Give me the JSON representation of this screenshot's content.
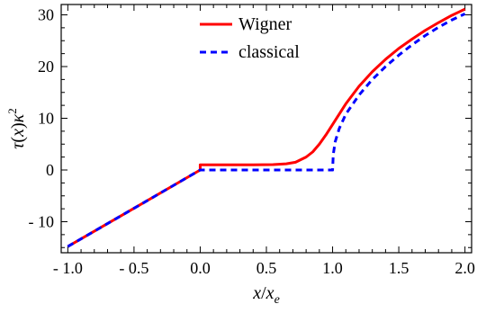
{
  "chart_data": {
    "type": "line",
    "title": "",
    "xlabel": "x/x_e",
    "ylabel": "τ(x)κ^2",
    "xlim": [
      -1.05,
      2.05
    ],
    "ylim": [
      -16,
      32
    ],
    "xticks": [
      -1.0,
      -0.5,
      0.0,
      0.5,
      1.0,
      1.5,
      2.0
    ],
    "xtick_labels": [
      "- 1.0",
      "- 0.5",
      "0.0",
      "0.5",
      "1.0",
      "1.5",
      "2.0"
    ],
    "yticks": [
      -10,
      0,
      10,
      20,
      30
    ],
    "ytick_labels": [
      "- 10",
      "0",
      "10",
      "20",
      "30"
    ],
    "grid": false,
    "legend_position": "top-center",
    "series": [
      {
        "name": "Wigner",
        "color": "#ff0000",
        "style": "solid",
        "points": [
          [
            -1.0,
            -14.8
          ],
          [
            -0.5,
            -7.4
          ],
          [
            0.0,
            0.0
          ],
          [
            0.0,
            1.0
          ],
          [
            0.2,
            1.0
          ],
          [
            0.4,
            1.0
          ],
          [
            0.55,
            1.05
          ],
          [
            0.65,
            1.2
          ],
          [
            0.72,
            1.5
          ],
          [
            0.8,
            2.5
          ],
          [
            0.85,
            3.5
          ],
          [
            0.9,
            5.0
          ],
          [
            0.95,
            6.8
          ],
          [
            1.0,
            8.8
          ],
          [
            1.05,
            10.8
          ],
          [
            1.1,
            12.8
          ],
          [
            1.2,
            16.2
          ],
          [
            1.3,
            19.0
          ],
          [
            1.4,
            21.4
          ],
          [
            1.5,
            23.5
          ],
          [
            1.6,
            25.3
          ],
          [
            1.7,
            27.0
          ],
          [
            1.8,
            28.5
          ],
          [
            1.9,
            29.9
          ],
          [
            2.0,
            31.1
          ]
        ]
      },
      {
        "name": "classical",
        "color": "#0000ff",
        "style": "dashed",
        "points": [
          [
            -1.0,
            -14.8
          ],
          [
            -0.5,
            -7.4
          ],
          [
            0.0,
            0.0
          ],
          [
            0.2,
            0.0
          ],
          [
            0.5,
            0.0
          ],
          [
            0.8,
            0.0
          ],
          [
            1.0,
            0.0
          ],
          [
            1.005,
            3.0
          ],
          [
            1.02,
            5.5
          ],
          [
            1.05,
            8.0
          ],
          [
            1.1,
            10.8
          ],
          [
            1.2,
            14.5
          ],
          [
            1.3,
            17.5
          ],
          [
            1.4,
            20.0
          ],
          [
            1.5,
            22.2
          ],
          [
            1.6,
            24.2
          ],
          [
            1.7,
            26.0
          ],
          [
            1.8,
            27.6
          ],
          [
            1.9,
            29.0
          ],
          [
            2.0,
            30.2
          ]
        ]
      }
    ]
  },
  "labels": {
    "ylabel_tau": "τ",
    "ylabel_paren": "(",
    "ylabel_x": "x",
    "ylabel_close": ")",
    "ylabel_kappa": "κ",
    "ylabel_exp": "2",
    "xlabel_x": "x",
    "xlabel_slash": "/",
    "xlabel_x2": "x",
    "xlabel_sub": "e",
    "legend_wigner": "Wigner",
    "legend_classical": "classical"
  }
}
